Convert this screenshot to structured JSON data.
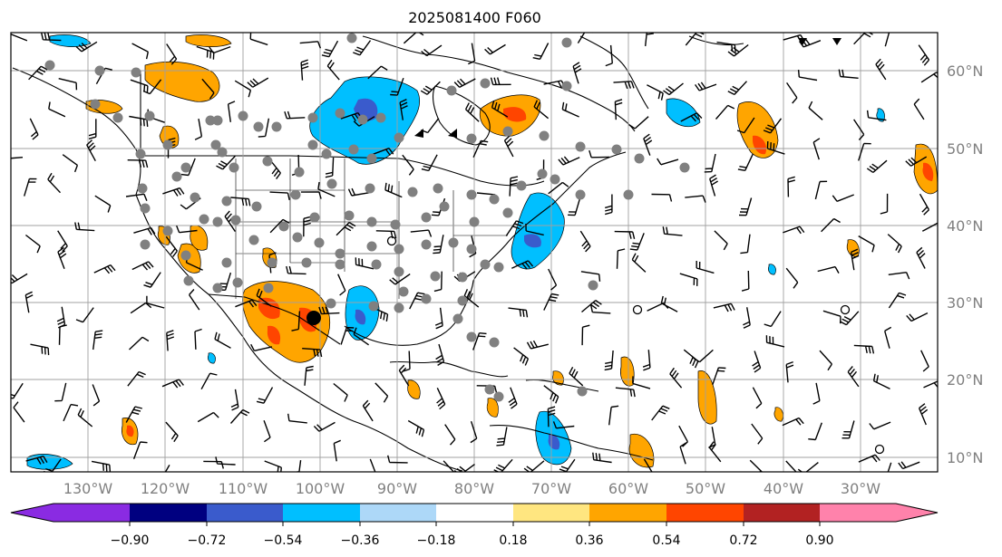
{
  "map": {
    "title": "2025081400 F060",
    "lon_labels": [
      "130°W",
      "120°W",
      "110°W",
      "100°W",
      "90°W",
      "80°W",
      "70°W",
      "60°W",
      "50°W",
      "40°W",
      "30°W"
    ],
    "lat_labels": [
      "60°N",
      "50°N",
      "40°N",
      "30°N",
      "20°N",
      "10°N"
    ],
    "extent": {
      "lon_min": -140,
      "lon_max": -20,
      "lat_min": 8,
      "lat_max": 65
    },
    "gridlines": true,
    "colorbar": {
      "tick_labels": [
        "−0.90",
        "−0.72",
        "−0.54",
        "−0.36",
        "−0.18",
        "0.18",
        "0.36",
        "0.54",
        "0.72",
        "0.90"
      ],
      "levels": [
        -0.9,
        -0.72,
        -0.54,
        -0.36,
        -0.18,
        0.18,
        0.36,
        0.54,
        0.72,
        0.9
      ],
      "colors": [
        "#8a2be2",
        "#000080",
        "#3a5bcc",
        "#00bfff",
        "#add8f8",
        "#ffffff",
        "#ffe680",
        "#ffa500",
        "#ff4500",
        "#b22222",
        "#ff82ab"
      ],
      "extend": "both"
    },
    "colors": {
      "coast": "#000000",
      "station_marker": "#808080",
      "highlight_marker": "#000000",
      "grid": "#a0a0a0"
    }
  }
}
